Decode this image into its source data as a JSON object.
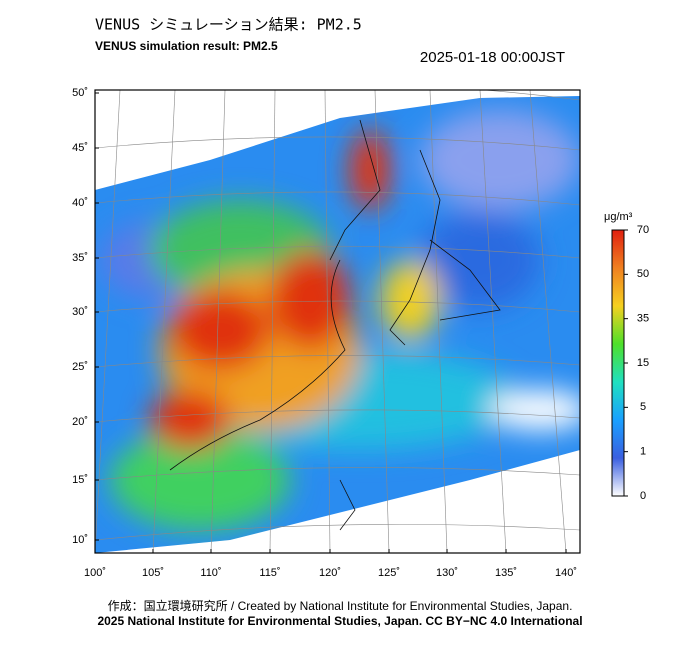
{
  "header": {
    "title": "VENUS シミュレーション結果: PM2.5",
    "subtitle": "VENUS simulation result: PM2.5",
    "datetime": "2025-01-18 00:00JST"
  },
  "map": {
    "lat_labels": [
      "50˚",
      "45˚",
      "40˚",
      "35˚",
      "30˚",
      "25˚",
      "20˚",
      "15˚",
      "10˚"
    ],
    "lon_labels": [
      "100˚",
      "105˚",
      "110˚",
      "115˚",
      "120˚",
      "125˚",
      "130˚",
      "135˚",
      "140˚"
    ]
  },
  "colorbar": {
    "unit": "μg/m³",
    "ticks": [
      0,
      1,
      5,
      15,
      35,
      50,
      70
    ],
    "colors": [
      "#ffffff",
      "#3a5fe0",
      "#1aa0ff",
      "#20e0c0",
      "#4ee02a",
      "#f5d020",
      "#f08020",
      "#e02010"
    ]
  },
  "footer": {
    "credit": "作成：国立環境研究所 / Created by National Institute for Environmental Studies, Japan.",
    "license": "2025 National Institute for Environmental Studies, Japan. CC BY−NC 4.0 International"
  }
}
